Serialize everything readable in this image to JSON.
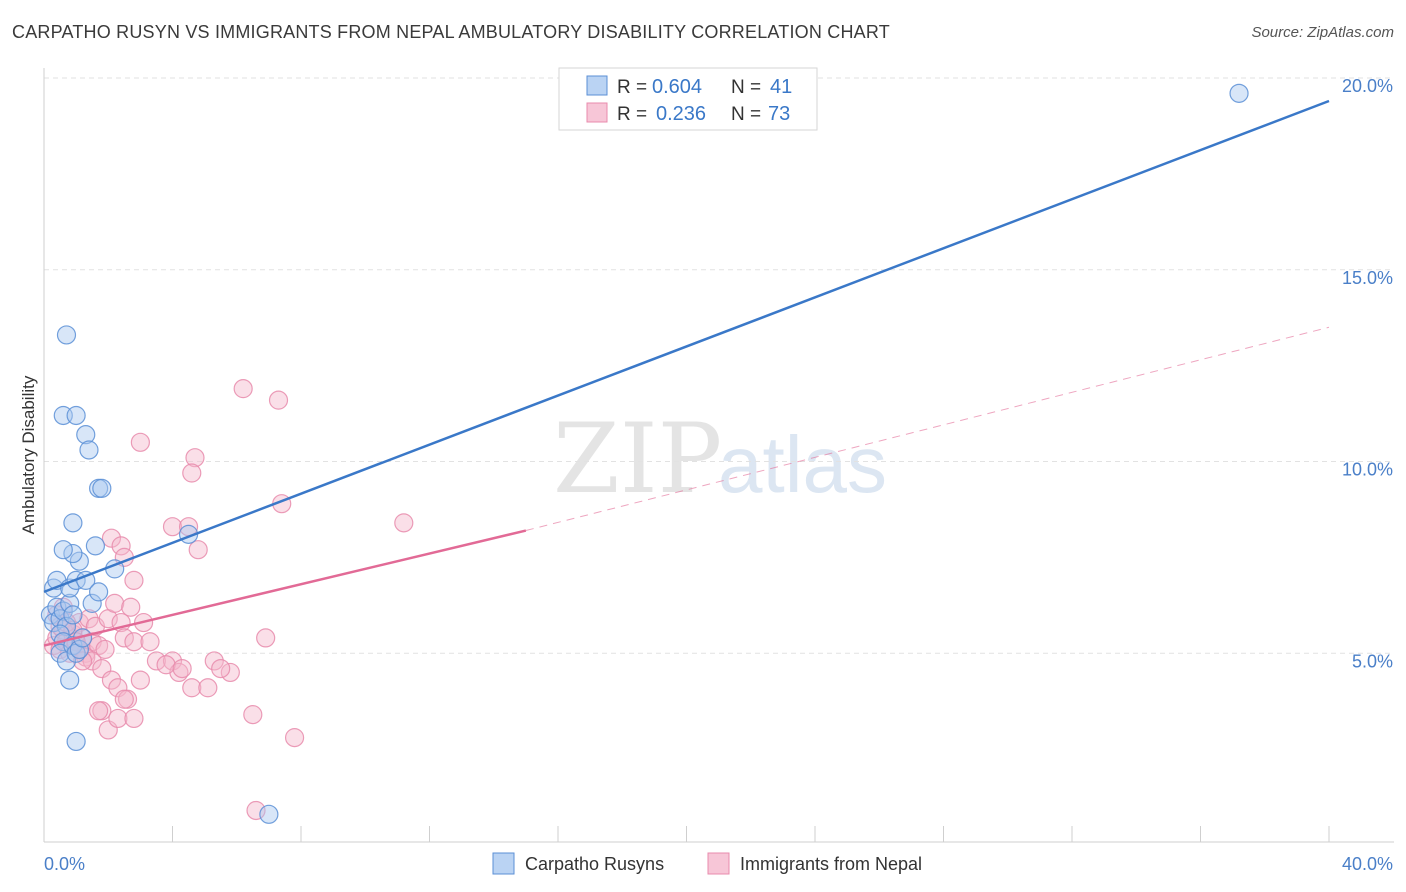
{
  "header": {
    "title": "CARPATHO RUSYN VS IMMIGRANTS FROM NEPAL AMBULATORY DISABILITY CORRELATION CHART",
    "source": "Source: ZipAtlas.com"
  },
  "watermark": {
    "part1": "ZIP",
    "part2": "atlas"
  },
  "colors": {
    "blue": "#3a78c8",
    "blue_fill": "#a9c8f0",
    "pink": "#e26a96",
    "pink_fill": "#f5b8cd",
    "grid": "#e2e2e2",
    "tick_label": "#4a7fc8"
  },
  "legend": {
    "entries": [
      {
        "r_label": "R =",
        "r_value": "0.604",
        "n_label": "N =",
        "n_value": "41"
      },
      {
        "r_label": "R =",
        "r_value": "0.236",
        "n_label": "N =",
        "n_value": "73"
      }
    ]
  },
  "chart_data": {
    "type": "scatter",
    "title": "CARPATHO RUSYN VS IMMIGRANTS FROM NEPAL AMBULATORY DISABILITY CORRELATION CHART",
    "xlabel": "",
    "ylabel": "Ambulatory Disability",
    "xlim": [
      0,
      40
    ],
    "ylim": [
      0,
      20
    ],
    "x_tick_labels": [
      {
        "value": 0,
        "label": "0.0%"
      },
      {
        "value": 40,
        "label": "40.0%"
      }
    ],
    "y_tick_labels": [
      {
        "value": 5,
        "label": "5.0%"
      },
      {
        "value": 10,
        "label": "10.0%"
      },
      {
        "value": 15,
        "label": "15.0%"
      },
      {
        "value": 20,
        "label": "20.0%"
      }
    ],
    "grid": true,
    "series": [
      {
        "name": "Carpatho Rusyns",
        "color": "#3a78c8",
        "points": [
          [
            0.2,
            6.0
          ],
          [
            0.3,
            5.8
          ],
          [
            0.4,
            6.2
          ],
          [
            0.5,
            5.9
          ],
          [
            0.6,
            6.1
          ],
          [
            0.3,
            6.7
          ],
          [
            0.4,
            6.9
          ],
          [
            0.7,
            5.7
          ],
          [
            0.8,
            6.3
          ],
          [
            0.9,
            6.0
          ],
          [
            0.5,
            5.5
          ],
          [
            0.6,
            5.3
          ],
          [
            0.5,
            5.0
          ],
          [
            0.7,
            4.8
          ],
          [
            0.9,
            5.2
          ],
          [
            1.0,
            5.0
          ],
          [
            1.1,
            5.1
          ],
          [
            1.2,
            5.4
          ],
          [
            0.8,
            6.7
          ],
          [
            1.0,
            6.9
          ],
          [
            1.1,
            7.4
          ],
          [
            1.3,
            6.9
          ],
          [
            1.5,
            6.3
          ],
          [
            0.9,
            7.6
          ],
          [
            0.6,
            7.7
          ],
          [
            1.6,
            7.8
          ],
          [
            2.2,
            7.2
          ],
          [
            1.7,
            6.6
          ],
          [
            0.8,
            4.3
          ],
          [
            1.0,
            2.7
          ],
          [
            0.9,
            8.4
          ],
          [
            1.7,
            9.3
          ],
          [
            1.8,
            9.3
          ],
          [
            1.3,
            10.7
          ],
          [
            1.4,
            10.3
          ],
          [
            0.6,
            11.2
          ],
          [
            1.0,
            11.2
          ],
          [
            0.7,
            13.3
          ],
          [
            4.5,
            8.1
          ],
          [
            7.0,
            0.8
          ],
          [
            37.2,
            19.6
          ]
        ],
        "trend": {
          "x0": 0,
          "y0": 6.6,
          "x1": 40,
          "y1": 19.4,
          "style": "solid"
        }
      },
      {
        "name": "Immigrants from Nepal",
        "color": "#e26a96",
        "points": [
          [
            0.3,
            5.2
          ],
          [
            0.4,
            5.4
          ],
          [
            0.5,
            5.1
          ],
          [
            0.6,
            5.6
          ],
          [
            0.7,
            5.3
          ],
          [
            0.8,
            5.0
          ],
          [
            0.9,
            5.5
          ],
          [
            1.0,
            5.2
          ],
          [
            1.1,
            5.8
          ],
          [
            1.2,
            5.4
          ],
          [
            1.3,
            5.0
          ],
          [
            1.4,
            5.9
          ],
          [
            1.5,
            5.3
          ],
          [
            1.6,
            5.7
          ],
          [
            1.7,
            5.2
          ],
          [
            0.4,
            6.0
          ],
          [
            0.5,
            5.7
          ],
          [
            0.6,
            6.2
          ],
          [
            0.7,
            5.8
          ],
          [
            0.9,
            5.6
          ],
          [
            1.0,
            5.3
          ],
          [
            1.1,
            5.1
          ],
          [
            1.3,
            4.9
          ],
          [
            1.5,
            4.8
          ],
          [
            1.8,
            4.6
          ],
          [
            2.0,
            5.9
          ],
          [
            2.2,
            6.3
          ],
          [
            2.4,
            5.8
          ],
          [
            2.5,
            5.4
          ],
          [
            2.7,
            6.2
          ],
          [
            2.8,
            5.3
          ],
          [
            3.1,
            5.8
          ],
          [
            3.3,
            5.3
          ],
          [
            3.5,
            4.8
          ],
          [
            2.1,
            4.3
          ],
          [
            2.3,
            4.1
          ],
          [
            2.6,
            3.8
          ],
          [
            1.8,
            3.5
          ],
          [
            2.0,
            3.0
          ],
          [
            2.3,
            3.3
          ],
          [
            2.8,
            3.3
          ],
          [
            3.0,
            4.3
          ],
          [
            1.7,
            3.5
          ],
          [
            2.5,
            3.8
          ],
          [
            2.1,
            8.0
          ],
          [
            2.4,
            7.8
          ],
          [
            2.5,
            7.5
          ],
          [
            2.8,
            6.9
          ],
          [
            4.0,
            8.3
          ],
          [
            4.5,
            8.3
          ],
          [
            4.8,
            7.7
          ],
          [
            4.7,
            10.1
          ],
          [
            4.6,
            9.7
          ],
          [
            3.0,
            10.5
          ],
          [
            6.2,
            11.9
          ],
          [
            7.3,
            11.6
          ],
          [
            7.4,
            8.9
          ],
          [
            11.2,
            8.4
          ],
          [
            5.3,
            4.8
          ],
          [
            5.8,
            4.5
          ],
          [
            4.0,
            4.8
          ],
          [
            4.2,
            4.5
          ],
          [
            4.6,
            4.1
          ],
          [
            5.1,
            4.1
          ],
          [
            6.5,
            3.4
          ],
          [
            6.9,
            5.4
          ],
          [
            7.8,
            2.8
          ],
          [
            6.6,
            0.9
          ],
          [
            3.8,
            4.7
          ],
          [
            4.3,
            4.6
          ],
          [
            5.5,
            4.6
          ],
          [
            1.9,
            5.1
          ],
          [
            1.2,
            4.8
          ]
        ],
        "trend": {
          "x0": 0,
          "y0": 5.2,
          "x1": 15,
          "y1": 8.2,
          "style": "solid"
        },
        "trend_extension": {
          "x0": 15,
          "y0": 8.2,
          "x1": 40,
          "y1": 13.5,
          "style": "dashed"
        }
      }
    ]
  }
}
